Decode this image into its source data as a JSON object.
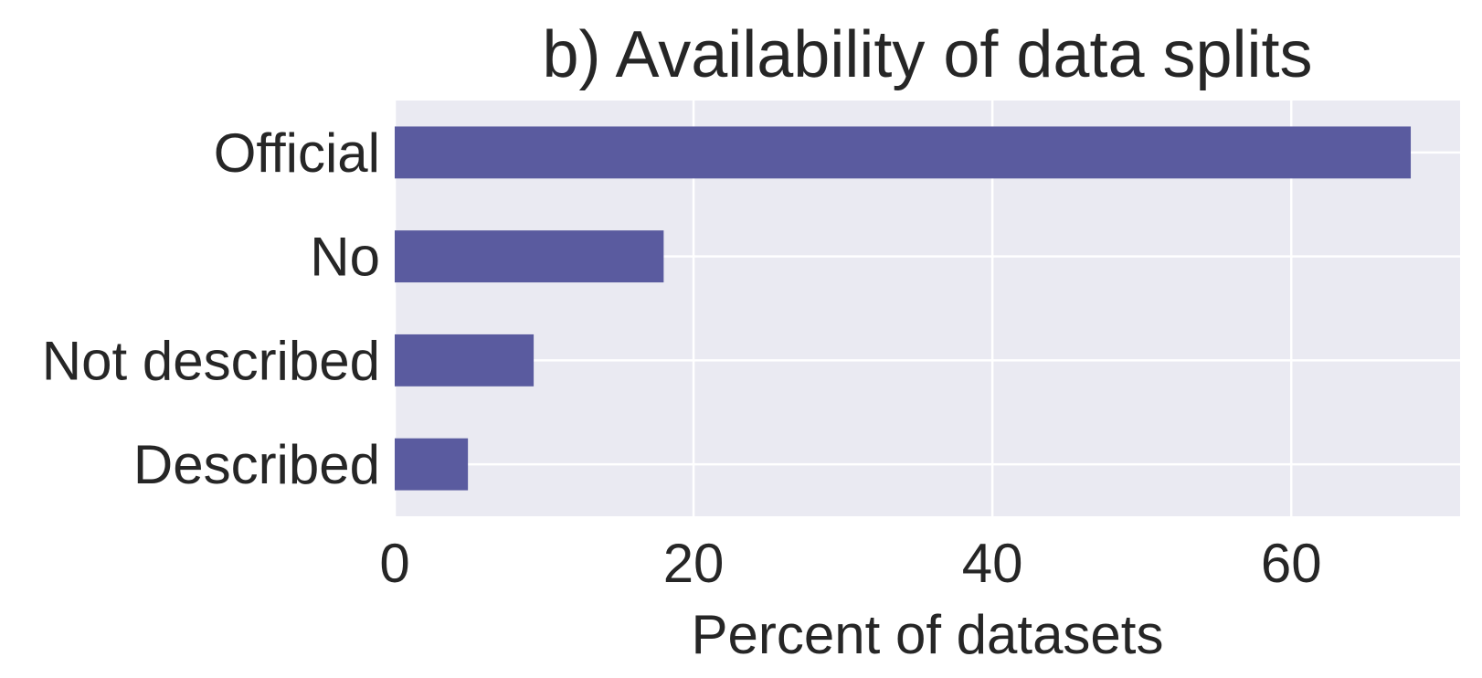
{
  "chart_data": {
    "type": "bar",
    "orientation": "horizontal",
    "title": "b) Availability of data splits",
    "xlabel": "Percent of datasets",
    "ylabel": "",
    "categories": [
      "Official",
      "No",
      "Not described",
      "Described"
    ],
    "values": [
      68,
      18,
      9.3,
      4.9
    ],
    "xlim": [
      0,
      71.3
    ],
    "xticks": [
      0,
      20,
      40,
      60
    ],
    "grid": true,
    "legend": "none"
  },
  "colors": {
    "bar": "#5a5b9f",
    "plot_background": "#eaeaf2",
    "grid": "#ffffff",
    "text": "#262626"
  }
}
